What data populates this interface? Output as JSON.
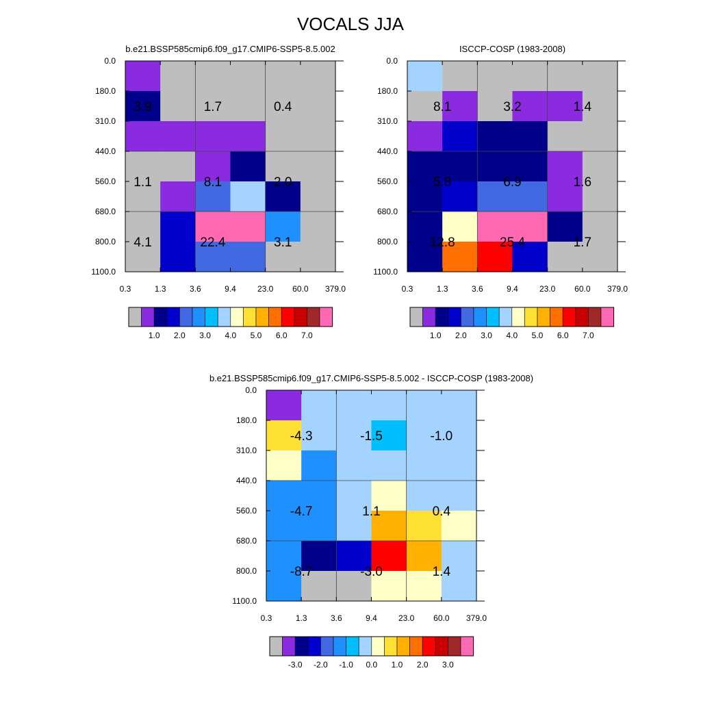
{
  "figure_title": "VOCALS JJA",
  "palettes": {
    "abs": [
      "#bebebe",
      "#8a2be2",
      "#00008b",
      "#0000cd",
      "#4169e1",
      "#1e90ff",
      "#00bfff",
      "#a4d3ff",
      "#ffffc8",
      "#ffe135",
      "#ffb000",
      "#ff7000",
      "#ff0000",
      "#c80000",
      "#a02828",
      "#ff69b4"
    ],
    "diff": [
      "#bebebe",
      "#8a2be2",
      "#00008b",
      "#0000cd",
      "#4169e1",
      "#1e90ff",
      "#00bfff",
      "#a4d3ff",
      "#ffffc8",
      "#ffe135",
      "#ffb000",
      "#ff7000",
      "#ff0000",
      "#c80000",
      "#a02828",
      "#ff69b4"
    ]
  },
  "chart_data": [
    {
      "type": "heatmap",
      "title": "b.e21.BSSP585cmip6.f09_g17.CMIP6-SSP5-8.5.002",
      "x_tick_labels": [
        "0.3",
        "1.3",
        "3.6",
        "9.4",
        "23.0",
        "60.0",
        "379.0"
      ],
      "y_tick_labels": [
        "0.0",
        "180.0",
        "310.0",
        "440.0",
        "560.0",
        "680.0",
        "800.0",
        "1100.0"
      ],
      "grid_x": [
        2,
        4
      ],
      "grid_y": [
        3,
        5
      ],
      "cells": [
        [
          1,
          0,
          0,
          0,
          0,
          0
        ],
        [
          2,
          0,
          0,
          0,
          0,
          0
        ],
        [
          1,
          1,
          1,
          1,
          0,
          0
        ],
        [
          0,
          0,
          1,
          2,
          0,
          0
        ],
        [
          0,
          1,
          4,
          7,
          2,
          0
        ],
        [
          0,
          3,
          15,
          15,
          5,
          0
        ],
        [
          0,
          3,
          4,
          4,
          0,
          0
        ]
      ],
      "labels": [
        {
          "col": 0.5,
          "row": 1.5,
          "text": "3.9"
        },
        {
          "col": 2.5,
          "row": 1.5,
          "text": "1.7"
        },
        {
          "col": 4.5,
          "row": 1.5,
          "text": "0.4"
        },
        {
          "col": 0.5,
          "row": 4,
          "text": "1.1"
        },
        {
          "col": 2.5,
          "row": 4,
          "text": "8.1"
        },
        {
          "col": 4.5,
          "row": 4,
          "text": "2.0"
        },
        {
          "col": 0.5,
          "row": 6,
          "text": "4.1"
        },
        {
          "col": 2.5,
          "row": 6,
          "text": "22.4"
        },
        {
          "col": 4.5,
          "row": 6,
          "text": "3.1"
        }
      ],
      "colorbar": {
        "palette": "abs",
        "tick_labels": [
          "1.0",
          "2.0",
          "3.0",
          "4.0",
          "5.0",
          "6.0",
          "7.0"
        ],
        "first_tick_boundary": 2
      }
    },
    {
      "type": "heatmap",
      "title": "ISCCP-COSP (1983-2008)",
      "x_tick_labels": [
        "0.3",
        "1.3",
        "3.6",
        "9.4",
        "23.0",
        "60.0",
        "379.0"
      ],
      "y_tick_labels": [
        "0.0",
        "180.0",
        "310.0",
        "440.0",
        "560.0",
        "680.0",
        "800.0",
        "1100.0"
      ],
      "grid_x": [
        2,
        4
      ],
      "grid_y": [
        3,
        5
      ],
      "cells": [
        [
          7,
          0,
          0,
          0,
          0,
          0
        ],
        [
          0,
          1,
          0,
          1,
          1,
          0
        ],
        [
          1,
          3,
          2,
          2,
          0,
          0
        ],
        [
          2,
          2,
          2,
          2,
          1,
          0
        ],
        [
          2,
          3,
          4,
          4,
          1,
          0
        ],
        [
          2,
          8,
          15,
          15,
          2,
          0
        ],
        [
          2,
          11,
          12,
          3,
          0,
          0
        ]
      ],
      "labels": [
        {
          "col": 1,
          "row": 1.5,
          "text": "8.1"
        },
        {
          "col": 3,
          "row": 1.5,
          "text": "3.2"
        },
        {
          "col": 5,
          "row": 1.5,
          "text": "1.4"
        },
        {
          "col": 1,
          "row": 4,
          "text": "5.8"
        },
        {
          "col": 3,
          "row": 4,
          "text": "6.9"
        },
        {
          "col": 5,
          "row": 4,
          "text": "1.6"
        },
        {
          "col": 1,
          "row": 6,
          "text": "12.8"
        },
        {
          "col": 3,
          "row": 6,
          "text": "25.4"
        },
        {
          "col": 5,
          "row": 6,
          "text": "1.7"
        }
      ],
      "colorbar": {
        "palette": "abs",
        "tick_labels": [
          "1.0",
          "2.0",
          "3.0",
          "4.0",
          "5.0",
          "6.0",
          "7.0"
        ],
        "first_tick_boundary": 2
      }
    },
    {
      "type": "heatmap",
      "title": "b.e21.BSSP585cmip6.f09_g17.CMIP6-SSP5-8.5.002 - ISCCP-COSP (1983-2008)",
      "x_tick_labels": [
        "0.3",
        "1.3",
        "3.6",
        "9.4",
        "23.0",
        "60.0",
        "379.0"
      ],
      "y_tick_labels": [
        "0.0",
        "180.0",
        "310.0",
        "440.0",
        "560.0",
        "680.0",
        "800.0",
        "1100.0"
      ],
      "grid_x": [
        2,
        4
      ],
      "grid_y": [
        3,
        5
      ],
      "cells": [
        [
          1,
          7,
          7,
          7,
          7,
          7
        ],
        [
          9,
          7,
          7,
          6,
          7,
          7
        ],
        [
          8,
          5,
          7,
          7,
          7,
          7
        ],
        [
          5,
          5,
          7,
          8,
          7,
          7
        ],
        [
          5,
          5,
          7,
          10,
          9,
          8
        ],
        [
          5,
          2,
          3,
          12,
          10,
          7
        ],
        [
          5,
          0,
          0,
          8,
          8,
          7
        ]
      ],
      "labels": [
        {
          "col": 1,
          "row": 1.5,
          "text": "-4.3"
        },
        {
          "col": 3,
          "row": 1.5,
          "text": "-1.5"
        },
        {
          "col": 5,
          "row": 1.5,
          "text": "-1.0"
        },
        {
          "col": 1,
          "row": 4,
          "text": "-4.7"
        },
        {
          "col": 3,
          "row": 4,
          "text": "1.1"
        },
        {
          "col": 5,
          "row": 4,
          "text": "0.4"
        },
        {
          "col": 1,
          "row": 6,
          "text": "-8.7"
        },
        {
          "col": 3,
          "row": 6,
          "text": "-3.0"
        },
        {
          "col": 5,
          "row": 6,
          "text": "1.4"
        }
      ],
      "colorbar": {
        "palette": "diff",
        "tick_labels": [
          "-3.0",
          "-2.0",
          "-1.0",
          "0.0",
          "1.0",
          "2.0",
          "3.0"
        ],
        "first_tick_boundary": 2
      }
    }
  ]
}
